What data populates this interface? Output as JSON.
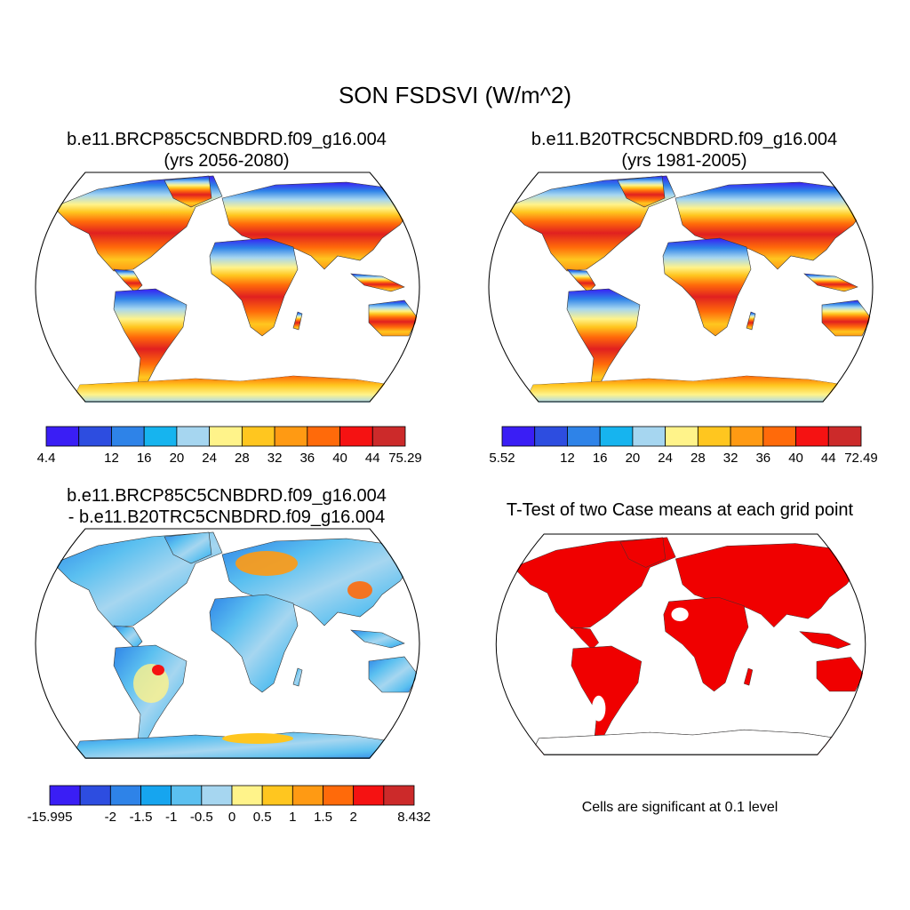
{
  "title": "SON FSDSVI (W/m^2)",
  "panels": {
    "p1": {
      "line1": "b.e11.BRCP85C5CNBDRD.f09_g16.004",
      "line2": "(yrs 2056-2080)",
      "colorbar": {
        "labels": [
          "4.4",
          "12",
          "16",
          "20",
          "24",
          "28",
          "32",
          "36",
          "40",
          "44",
          "75.29"
        ],
        "colors": [
          "#3a1ef5",
          "#2d4de0",
          "#2e83e8",
          "#16b4ef",
          "#a6d6f0",
          "#fff38a",
          "#ffc61f",
          "#ff9a13",
          "#ff6a0a",
          "#f51212",
          "#cc2a2a"
        ]
      }
    },
    "p2": {
      "line1": "b.e11.B20TRC5CNBDRD.f09_g16.004",
      "line2": "(yrs 1981-2005)",
      "colorbar": {
        "labels": [
          "5.52",
          "12",
          "16",
          "20",
          "24",
          "28",
          "32",
          "36",
          "40",
          "44",
          "72.49"
        ],
        "colors": [
          "#3a1ef5",
          "#2d4de0",
          "#2e83e8",
          "#16b4ef",
          "#a6d6f0",
          "#fff38a",
          "#ffc61f",
          "#ff9a13",
          "#ff6a0a",
          "#f51212",
          "#cc2a2a"
        ]
      }
    },
    "p3": {
      "line1": "b.e11.BRCP85C5CNBDRD.f09_g16.004",
      "line2": "- b.e11.B20TRC5CNBDRD.f09_g16.004",
      "colorbar": {
        "labels": [
          "-15.995",
          "-2",
          "-1.5",
          "-1",
          "-0.5",
          "0",
          "0.5",
          "1",
          "1.5",
          "2",
          "8.432"
        ],
        "colors": [
          "#3a1ef5",
          "#2d4de0",
          "#2e83e8",
          "#16a5ef",
          "#5bc0f0",
          "#a6d6f0",
          "#fff38a",
          "#ffc61f",
          "#ff9a13",
          "#ff6a0a",
          "#f51212",
          "#cc2a2a"
        ]
      }
    },
    "p4": {
      "line1": "T-Test of two Case means at each grid point",
      "note": "Cells are significant at 0.1 level",
      "sig_color": "#f00000"
    }
  }
}
